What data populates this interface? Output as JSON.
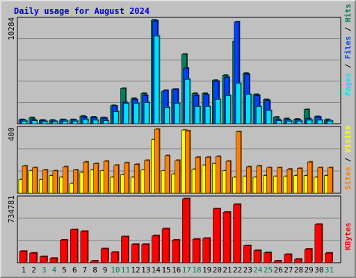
{
  "title": "Daily usage for August 2024",
  "right_labels": {
    "hits": "Hits",
    "files": "Files",
    "pages": "Pages",
    "visits": "Visits",
    "sites": "Sites",
    "kbytes": "KBytes",
    "sep": " / "
  },
  "colors": {
    "hits": "#00805c",
    "files": "#0040ff",
    "pages": "#00e0ff",
    "visits": "#ffff00",
    "sites": "#ff8000",
    "kbytes": "#ff0000",
    "weekend": "#00805c",
    "weekday": "#000000"
  },
  "chart_data": [
    {
      "type": "bar",
      "name": "hits-files-pages",
      "ymax_label": "10284",
      "ylim": [
        0,
        10284
      ],
      "categories": [
        "1",
        "2",
        "3",
        "4",
        "5",
        "6",
        "7",
        "8",
        "9",
        "10",
        "11",
        "12",
        "13",
        "14",
        "15",
        "16",
        "17",
        "18",
        "19",
        "20",
        "21",
        "22",
        "23",
        "24",
        "25",
        "26",
        "27",
        "28",
        "29",
        "30",
        "31"
      ],
      "weekend_days": [
        3,
        4,
        10,
        11,
        17,
        18,
        24,
        25,
        31
      ],
      "series": [
        {
          "name": "Hits",
          "values": [
            400,
            600,
            350,
            350,
            400,
            400,
            750,
            650,
            600,
            1800,
            3500,
            2500,
            3000,
            10284,
            3200,
            3400,
            6900,
            3000,
            3000,
            4300,
            4800,
            8200,
            5000,
            2900,
            2400,
            650,
            500,
            450,
            1400,
            700,
            400
          ]
        },
        {
          "name": "Files",
          "values": [
            350,
            400,
            300,
            250,
            350,
            350,
            650,
            600,
            550,
            1750,
            2100,
            2400,
            2800,
            10200,
            3300,
            3400,
            5500,
            2800,
            2850,
            4200,
            4600,
            10100,
            4900,
            2800,
            2300,
            400,
            380,
            380,
            500,
            650,
            300
          ]
        },
        {
          "name": "Pages",
          "values": [
            250,
            300,
            200,
            200,
            250,
            250,
            400,
            350,
            300,
            1200,
            2000,
            2000,
            2100,
            8700,
            1600,
            2000,
            4400,
            1700,
            1700,
            2400,
            2800,
            4000,
            2900,
            1700,
            1300,
            300,
            250,
            250,
            350,
            350,
            250
          ]
        }
      ]
    },
    {
      "type": "bar",
      "name": "visits-sites",
      "ymax_label": "400",
      "ylim": [
        0,
        400
      ],
      "categories": [
        "1",
        "2",
        "3",
        "4",
        "5",
        "6",
        "7",
        "8",
        "9",
        "10",
        "11",
        "12",
        "13",
        "14",
        "15",
        "16",
        "17",
        "18",
        "19",
        "20",
        "21",
        "22",
        "23",
        "24",
        "25",
        "26",
        "27",
        "28",
        "29",
        "30",
        "31"
      ],
      "series": [
        {
          "name": "Visits",
          "values": [
            85,
            140,
            85,
            110,
            100,
            60,
            130,
            145,
            140,
            100,
            115,
            100,
            145,
            335,
            140,
            120,
            395,
            150,
            175,
            185,
            140,
            100,
            105,
            100,
            110,
            105,
            105,
            110,
            110,
            100,
            110
          ]
        },
        {
          "name": "Sites",
          "values": [
            170,
            160,
            145,
            140,
            165,
            145,
            195,
            185,
            200,
            175,
            190,
            180,
            205,
            400,
            235,
            205,
            390,
            225,
            225,
            230,
            200,
            385,
            165,
            170,
            160,
            160,
            150,
            155,
            195,
            160,
            160
          ]
        }
      ]
    },
    {
      "type": "bar",
      "name": "kbytes",
      "ymax_label": "734781",
      "ylim": [
        0,
        734781
      ],
      "categories": [
        "1",
        "2",
        "3",
        "4",
        "5",
        "6",
        "7",
        "8",
        "9",
        "10",
        "11",
        "12",
        "13",
        "14",
        "15",
        "16",
        "17",
        "18",
        "19",
        "20",
        "21",
        "22",
        "23",
        "24",
        "25",
        "26",
        "27",
        "28",
        "29",
        "30",
        "31"
      ],
      "series": [
        {
          "name": "KBytes",
          "values": [
            130000,
            110000,
            70000,
            50000,
            260000,
            380000,
            360000,
            20000,
            160000,
            120000,
            300000,
            210000,
            210000,
            310000,
            390000,
            260000,
            734781,
            270000,
            280000,
            620000,
            580000,
            670000,
            195000,
            140000,
            115000,
            20000,
            95000,
            40000,
            155000,
            440000,
            110000
          ]
        }
      ]
    }
  ]
}
